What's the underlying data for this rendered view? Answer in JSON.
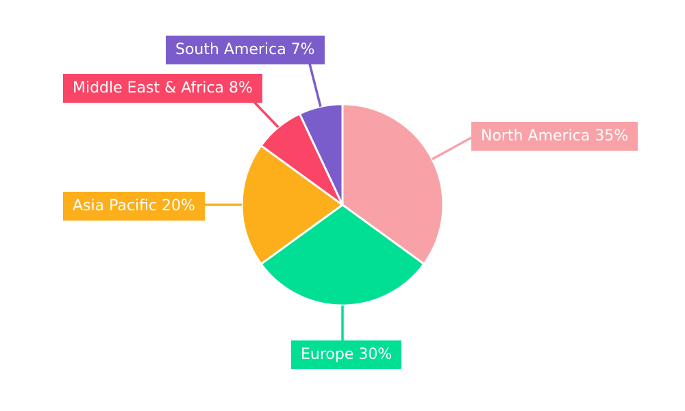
{
  "chart_data": {
    "type": "pie",
    "title": "",
    "unit": "%",
    "categories": [
      "North America",
      "Europe",
      "Asia Pacific",
      "Middle East & Africa",
      "South America"
    ],
    "values": [
      35,
      30,
      20,
      8,
      7
    ],
    "slices": [
      {
        "label": "North America",
        "value": 35,
        "callout_text": "North America 35%",
        "color": "#F8A2A8"
      },
      {
        "label": "Europe",
        "value": 30,
        "callout_text": "Europe 30%",
        "color": "#00DF94"
      },
      {
        "label": "Asia Pacific",
        "value": 20,
        "callout_text": "Asia Pacific 20%",
        "color": "#FCAF1A"
      },
      {
        "label": "Middle East & Africa",
        "value": 8,
        "callout_text": "Middle East & Africa 8%",
        "color": "#FB4566"
      },
      {
        "label": "South America",
        "value": 7,
        "callout_text": "South America 7%",
        "color": "#7A5DCB"
      }
    ],
    "start_angle_deg": 0,
    "direction": "clockwise",
    "legend_position": "external-callout-labels",
    "label_text_color": "#FFFFFF",
    "background_color": "#FFFFFF",
    "slice_border_color": "#FFFFFF"
  }
}
